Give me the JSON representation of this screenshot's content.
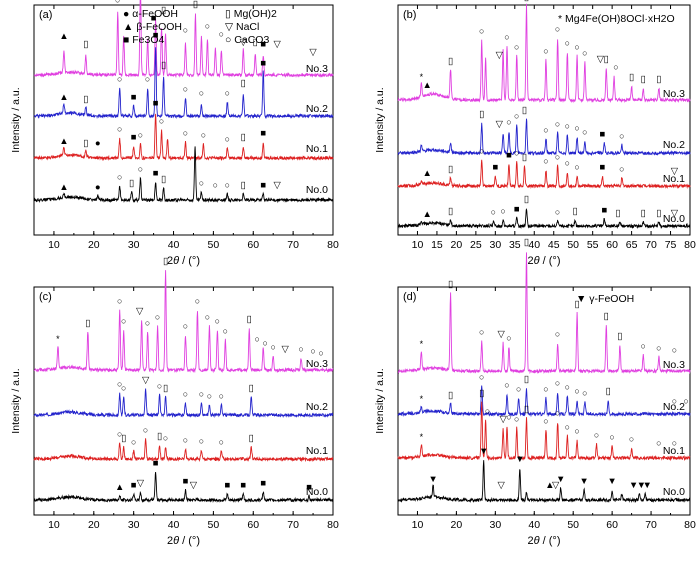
{
  "figure": {
    "ylabel": "Intensity / a.u.",
    "xlabel_main": "2",
    "xlabel_theta": "θ",
    "xlabel_unit": " / (°)"
  },
  "chart_data": [
    {
      "type": "line",
      "panel": "(a)",
      "xlim": [
        5,
        80
      ],
      "xticks": [
        10,
        20,
        30,
        40,
        50,
        60,
        70,
        80
      ],
      "xlabel": "2θ / (°)",
      "ylabel": "Intensity / a.u.",
      "legend": {
        "placement": "top",
        "entries": [
          {
            "marker": "●",
            "text": "α-FeOOH"
          },
          {
            "marker": "▲",
            "text": "β-FeOOH"
          },
          {
            "marker": "■",
            "text": "Fe3O4"
          },
          {
            "marker": "▯",
            "text": "Mg(OH)2"
          },
          {
            "marker": "▽",
            "text": "NaCl"
          },
          {
            "marker": "○",
            "text": "CaCO3"
          }
        ]
      },
      "series": [
        {
          "name": "No.3",
          "color": "#e040e0",
          "peaks": [
            [
              12.5,
              22
            ],
            [
              18,
              18
            ],
            [
              26,
              62
            ],
            [
              27.5,
              38
            ],
            [
              31.7,
              88
            ],
            [
              33.5,
              35
            ],
            [
              35.5,
              55
            ],
            [
              37,
              48
            ],
            [
              38,
              42
            ],
            [
              43,
              32
            ],
            [
              45.5,
              60
            ],
            [
              47,
              38
            ],
            [
              48.5,
              35
            ],
            [
              50.5,
              28
            ],
            [
              52,
              24
            ],
            [
              57.5,
              26
            ],
            [
              60.5,
              22
            ],
            [
              62.5,
              20
            ]
          ]
        },
        {
          "name": "No.2",
          "color": "#2424cc",
          "peaks": [
            [
              12.5,
              10
            ],
            [
              18,
              8
            ],
            [
              26.5,
              28
            ],
            [
              30,
              10
            ],
            [
              33.5,
              28
            ],
            [
              35.5,
              70
            ],
            [
              37.5,
              40
            ],
            [
              43,
              18
            ],
            [
              47,
              12
            ],
            [
              53.5,
              14
            ],
            [
              57.5,
              22
            ],
            [
              62.5,
              45
            ]
          ]
        },
        {
          "name": "No.1",
          "color": "#dd2020",
          "peaks": [
            [
              12.5,
              8
            ],
            [
              18,
              6
            ],
            [
              26.5,
              20
            ],
            [
              30,
              12
            ],
            [
              31.7,
              14
            ],
            [
              35.5,
              45
            ],
            [
              37,
              28
            ],
            [
              38.5,
              20
            ],
            [
              43,
              16
            ],
            [
              47.5,
              14
            ],
            [
              53.5,
              10
            ],
            [
              57.5,
              12
            ],
            [
              62.5,
              16
            ]
          ]
        },
        {
          "name": "No.0",
          "color": "#000000",
          "peaks": [
            [
              12.5,
              4
            ],
            [
              21,
              4
            ],
            [
              26.5,
              14
            ],
            [
              29.5,
              8
            ],
            [
              31.7,
              22
            ],
            [
              35.5,
              18
            ],
            [
              37.5,
              12
            ],
            [
              45.4,
              55
            ],
            [
              47,
              8
            ],
            [
              53.5,
              6
            ],
            [
              57.5,
              6
            ],
            [
              62.5,
              6
            ]
          ]
        }
      ]
    },
    {
      "type": "line",
      "panel": "(b)",
      "xlim": [
        5,
        80
      ],
      "xticks": [
        10,
        15,
        20,
        25,
        30,
        35,
        40,
        45,
        50,
        55,
        60,
        65,
        70,
        75,
        80
      ],
      "xlabel": "2θ / (°)",
      "ylabel": "Intensity / a.u.",
      "legend": {
        "placement": "top-right",
        "entries": [
          {
            "marker": "*",
            "text": "Mg4Fe(OH)8OCl·xH2O"
          }
        ]
      },
      "series": [
        {
          "name": "No.3",
          "color": "#e040e0",
          "peaks": [
            [
              11,
              14
            ],
            [
              18.5,
              30
            ],
            [
              26.5,
              60
            ],
            [
              27.5,
              42
            ],
            [
              32,
              50
            ],
            [
              33,
              55
            ],
            [
              35.5,
              45
            ],
            [
              38,
              95
            ],
            [
              43,
              40
            ],
            [
              46,
              62
            ],
            [
              48.5,
              48
            ],
            [
              51,
              45
            ],
            [
              53,
              38
            ],
            [
              58.5,
              32
            ],
            [
              60.5,
              24
            ],
            [
              65,
              14
            ],
            [
              68,
              12
            ],
            [
              72,
              12
            ]
          ]
        },
        {
          "name": "No.2",
          "color": "#2424cc",
          "peaks": [
            [
              11,
              6
            ],
            [
              18.5,
              10
            ],
            [
              26.5,
              30
            ],
            [
              32,
              20
            ],
            [
              33.5,
              22
            ],
            [
              35.5,
              28
            ],
            [
              38,
              35
            ],
            [
              43,
              14
            ],
            [
              46,
              20
            ],
            [
              48.5,
              18
            ],
            [
              51,
              16
            ],
            [
              53,
              12
            ],
            [
              58,
              10
            ],
            [
              62.5,
              8
            ]
          ]
        },
        {
          "name": "No.1",
          "color": "#dd2020",
          "peaks": [
            [
              11,
              4
            ],
            [
              18.5,
              8
            ],
            [
              26.5,
              26
            ],
            [
              30,
              10
            ],
            [
              33.5,
              22
            ],
            [
              35.5,
              24
            ],
            [
              37.5,
              20
            ],
            [
              43,
              16
            ],
            [
              46,
              20
            ],
            [
              48.5,
              14
            ],
            [
              51,
              10
            ],
            [
              57.5,
              10
            ],
            [
              62.5,
              8
            ]
          ]
        },
        {
          "name": "No.0",
          "color": "#000000",
          "peaks": [
            [
              11,
              3
            ],
            [
              18.5,
              6
            ],
            [
              29.5,
              5
            ],
            [
              32,
              6
            ],
            [
              35.5,
              8
            ],
            [
              38,
              18
            ],
            [
              46,
              5
            ],
            [
              50.5,
              6
            ],
            [
              58,
              7
            ],
            [
              62,
              4
            ],
            [
              68,
              4
            ],
            [
              72,
              4
            ]
          ]
        }
      ]
    },
    {
      "type": "line",
      "panel": "(c)",
      "xlim": [
        5,
        80
      ],
      "xticks": [
        10,
        20,
        30,
        40,
        50,
        60,
        70,
        80
      ],
      "xlabel": "2θ / (°)",
      "ylabel": "Intensity / a.u.",
      "series": [
        {
          "name": "No.3",
          "color": "#e040e0",
          "peaks": [
            [
              11,
              22
            ],
            [
              18.5,
              38
            ],
            [
              26.5,
              60
            ],
            [
              27.5,
              40
            ],
            [
              32,
              50
            ],
            [
              33.5,
              38
            ],
            [
              36,
              44
            ],
            [
              38,
              100
            ],
            [
              43,
              35
            ],
            [
              46,
              60
            ],
            [
              49,
              44
            ],
            [
              51,
              40
            ],
            [
              53,
              30
            ],
            [
              59,
              42
            ],
            [
              62.5,
              22
            ],
            [
              65,
              14
            ],
            [
              72,
              12
            ]
          ]
        },
        {
          "name": "No.2",
          "color": "#2424cc",
          "peaks": [
            [
              26.5,
              22
            ],
            [
              27.5,
              18
            ],
            [
              33,
              26
            ],
            [
              36.5,
              20
            ],
            [
              38,
              18
            ],
            [
              43,
              12
            ],
            [
              47,
              12
            ],
            [
              49,
              10
            ],
            [
              52,
              10
            ],
            [
              59.5,
              18
            ]
          ]
        },
        {
          "name": "No.1",
          "color": "#dd2020",
          "peaks": [
            [
              26.5,
              16
            ],
            [
              27.5,
              12
            ],
            [
              30,
              8
            ],
            [
              33,
              20
            ],
            [
              36.5,
              14
            ],
            [
              38,
              12
            ],
            [
              43,
              10
            ],
            [
              47,
              9
            ],
            [
              52,
              8
            ],
            [
              59.5,
              12
            ]
          ]
        },
        {
          "name": "No.0",
          "color": "#000000",
          "peaks": [
            [
              26.5,
              4
            ],
            [
              30,
              6
            ],
            [
              31.7,
              8
            ],
            [
              35.5,
              28
            ],
            [
              43,
              10
            ],
            [
              53.5,
              6
            ],
            [
              57.5,
              6
            ],
            [
              62.5,
              8
            ],
            [
              74,
              4
            ]
          ]
        }
      ]
    },
    {
      "type": "line",
      "panel": "(d)",
      "xlim": [
        5,
        80
      ],
      "xticks": [
        10,
        20,
        30,
        40,
        50,
        60,
        70,
        80
      ],
      "xlabel": "2θ / (°)",
      "ylabel": "Intensity / a.u.",
      "legend": {
        "placement": "top-right",
        "entries": [
          {
            "marker": "▼",
            "text": "γ-FeOOH"
          }
        ]
      },
      "series": [
        {
          "name": "No.3",
          "color": "#e040e0",
          "peaks": [
            [
              11,
              18
            ],
            [
              18.5,
              78
            ],
            [
              26.5,
              30
            ],
            [
              32,
              28
            ],
            [
              33.5,
              24
            ],
            [
              38,
              120
            ],
            [
              46,
              28
            ],
            [
              51,
              58
            ],
            [
              58.5,
              46
            ],
            [
              62,
              26
            ],
            [
              68,
              16
            ],
            [
              72,
              14
            ]
          ]
        },
        {
          "name": "No.2",
          "color": "#2424cc",
          "peaks": [
            [
              11,
              6
            ],
            [
              18.5,
              10
            ],
            [
              26.5,
              28
            ],
            [
              33,
              20
            ],
            [
              36,
              16
            ],
            [
              38,
              26
            ],
            [
              43,
              16
            ],
            [
              46,
              22
            ],
            [
              48.5,
              18
            ],
            [
              51,
              14
            ],
            [
              53,
              12
            ],
            [
              59,
              14
            ]
          ]
        },
        {
          "name": "No.1",
          "color": "#dd2020",
          "peaks": [
            [
              11,
              12
            ],
            [
              26.5,
              56
            ],
            [
              27.5,
              38
            ],
            [
              32,
              30
            ],
            [
              33,
              32
            ],
            [
              35.5,
              30
            ],
            [
              38,
              40
            ],
            [
              43,
              28
            ],
            [
              46,
              36
            ],
            [
              48.5,
              22
            ],
            [
              51,
              18
            ],
            [
              56,
              14
            ],
            [
              60,
              12
            ],
            [
              65,
              10
            ]
          ]
        },
        {
          "name": "No.0",
          "color": "#000000",
          "peaks": [
            [
              14,
              12
            ],
            [
              27,
              40
            ],
            [
              36.3,
              32
            ],
            [
              38,
              8
            ],
            [
              46.8,
              12
            ],
            [
              52.8,
              10
            ],
            [
              60,
              10
            ],
            [
              62.5,
              6
            ],
            [
              67,
              6
            ],
            [
              68.5,
              6
            ]
          ]
        }
      ]
    }
  ]
}
